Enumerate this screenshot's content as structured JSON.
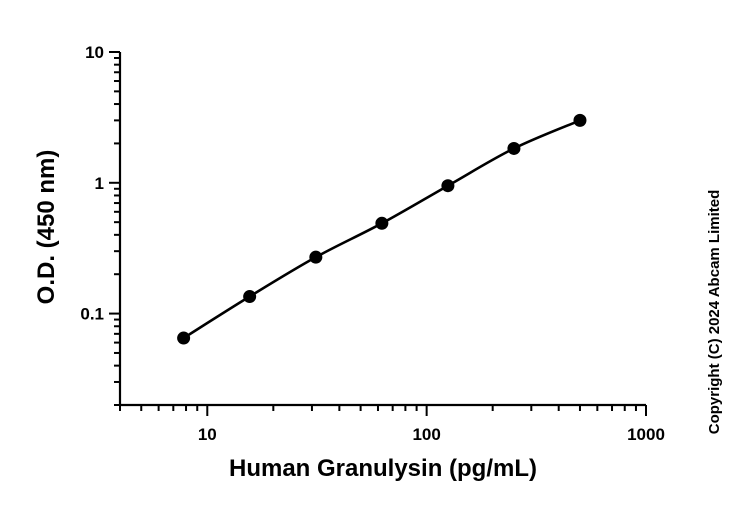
{
  "chart_data": {
    "type": "scatter",
    "xlabel": "Human Granulysin (pg/mL)",
    "ylabel": "O.D. (450 nm)",
    "x_scale": "log",
    "y_scale": "log",
    "xlim": [
      4,
      1000
    ],
    "ylim": [
      0.02,
      10
    ],
    "x_ticks": [
      {
        "value": 10,
        "label": "10"
      },
      {
        "value": 100,
        "label": "100"
      },
      {
        "value": 1000,
        "label": "1000"
      }
    ],
    "y_ticks": [
      {
        "value": 0.1,
        "label": "0.1"
      },
      {
        "value": 1,
        "label": "1"
      },
      {
        "value": 10,
        "label": "10"
      }
    ],
    "series": [
      {
        "x": [
          7.8,
          15.6,
          31.25,
          62.5,
          125,
          250,
          500
        ],
        "y": [
          0.065,
          0.135,
          0.27,
          0.49,
          0.95,
          1.83,
          3.0
        ]
      }
    ],
    "grid": false,
    "legend": "none"
  },
  "copyright": "Copyright (C) 2024 Abcam Limited",
  "colors": {
    "points": "#000000",
    "line": "#000000"
  }
}
